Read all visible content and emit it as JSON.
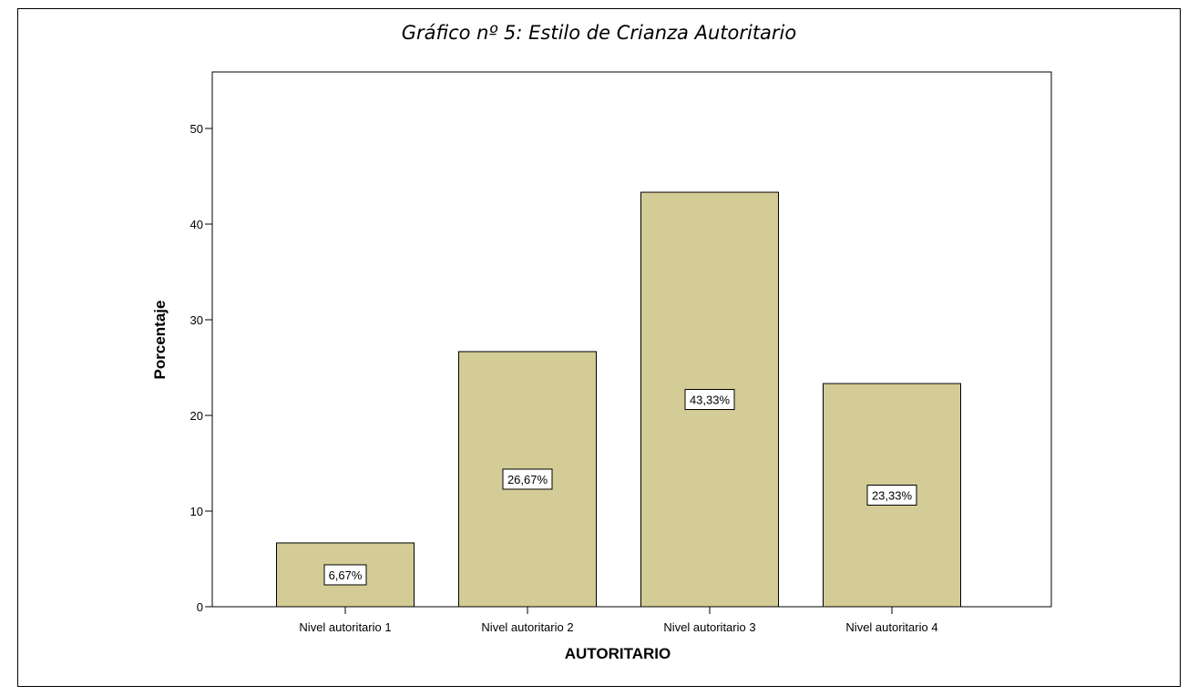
{
  "chart_data": {
    "type": "bar",
    "title": "Gráfico nº 5: Estilo de Crianza Autoritario",
    "xlabel": "AUTORITARIO",
    "ylabel": "Porcentaje",
    "categories": [
      "Nivel autoritario 1",
      "Nivel autoritario 2",
      "Nivel autoritario 3",
      "Nivel autoritario 4"
    ],
    "values": [
      6.67,
      26.67,
      43.33,
      23.33
    ],
    "data_labels": [
      "6,67%",
      "26,67%",
      "43,33%",
      "23,33%"
    ],
    "ylim": [
      0,
      55
    ],
    "yticks": [
      0,
      10,
      20,
      30,
      40,
      50
    ],
    "grid": false,
    "legend": "none",
    "colors": {
      "bar_fill": "#d4cc96",
      "bar_stroke": "#000000",
      "label_box_fill": "#ffffff"
    }
  }
}
